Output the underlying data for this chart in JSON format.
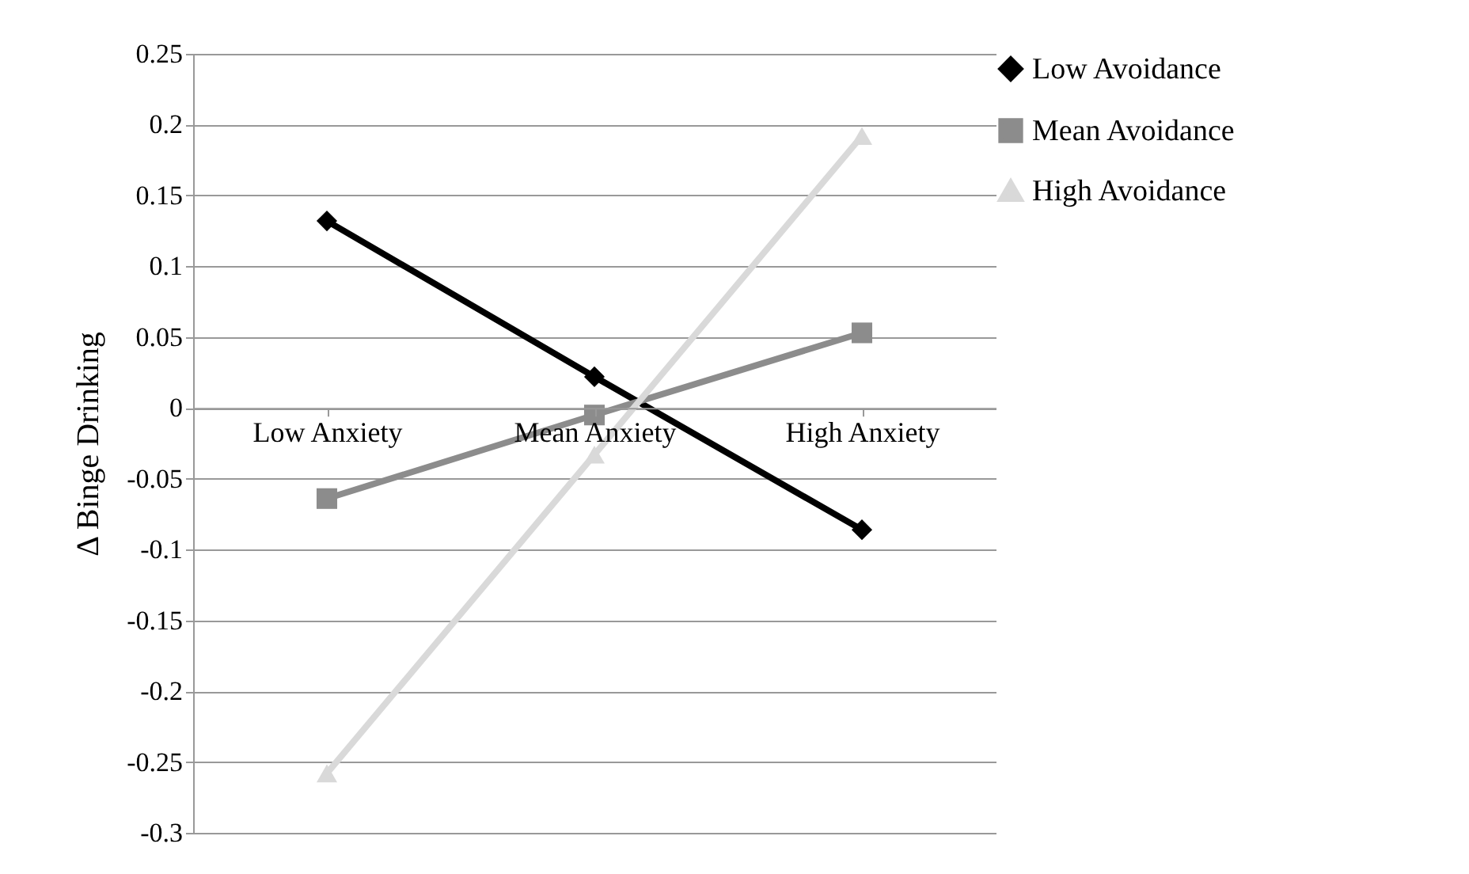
{
  "chart_data": {
    "type": "line",
    "ylabel": "Δ Binge Drinking",
    "categories": [
      "Low Anxiety",
      "Mean Anxiety",
      "High Anxiety"
    ],
    "series": [
      {
        "name": "Low Avoidance",
        "color": "#000000",
        "marker": "diamond",
        "values": [
          0.132,
          0.022,
          -0.086
        ]
      },
      {
        "name": "Mean Avoidance",
        "color": "#8c8c8c",
        "marker": "square",
        "values": [
          -0.064,
          -0.005,
          0.053
        ]
      },
      {
        "name": "High Avoidance",
        "color": "#d9d9d9",
        "marker": "triangle",
        "values": [
          -0.258,
          -0.033,
          0.192
        ]
      }
    ],
    "ylim": [
      -0.3,
      0.25
    ],
    "yticks": [
      -0.3,
      -0.25,
      -0.2,
      -0.15,
      -0.1,
      -0.05,
      0,
      0.05,
      0.1,
      0.15,
      0.2,
      0.25
    ],
    "grid": "y",
    "legend": "right",
    "line_style": "solid"
  }
}
